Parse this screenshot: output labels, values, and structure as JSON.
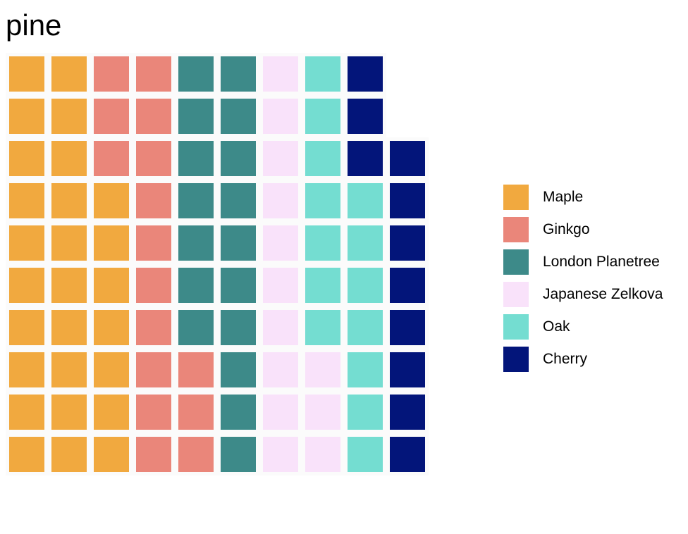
{
  "chart_data": {
    "type": "waffle",
    "title": "pine",
    "units_per_square": 1,
    "rows": 10,
    "fill_order": "column-wise, bottom to top, left to right",
    "categories": [
      "Maple",
      "Ginkgo",
      "London Planetree",
      "Japanese Zelkova",
      "Oak",
      "Cherry"
    ],
    "values": [
      27,
      16,
      17,
      13,
      14,
      11
    ],
    "colors": [
      "#F1A93F",
      "#EA867A",
      "#3D8A89",
      "#F9E2FA",
      "#74DDD1",
      "#03157A"
    ],
    "legend": {
      "position": "right",
      "entries": [
        "Maple",
        "Ginkgo",
        "London Planetree",
        "Japanese Zelkova",
        "Oak",
        "Cherry"
      ]
    },
    "grid": false
  }
}
